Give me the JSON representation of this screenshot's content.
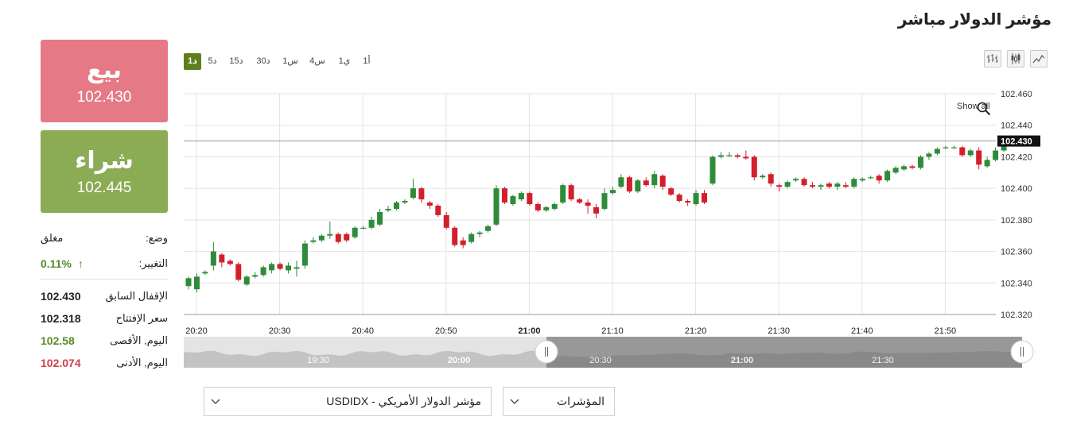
{
  "page": {
    "title": "مؤشر الدولار مباشر"
  },
  "sell": {
    "label": "بيع",
    "price": "102.430"
  },
  "buy": {
    "label": "شراء",
    "price": "102.445"
  },
  "info": {
    "status_label": "وضع:",
    "status_value": "مغلق",
    "change_label": "التغيير:",
    "change_value": "0.11%",
    "prev_close_label": "الإقفال السابق",
    "prev_close_value": "102.430",
    "open_label": "سعر الإفتتاح",
    "open_value": "102.318",
    "high_label": "اليوم, الأقصى",
    "high_value": "102.58",
    "low_label": "اليوم, الأدنى",
    "low_value": "102.074"
  },
  "timeframes": [
    "1د",
    "5د",
    "15د",
    "30د",
    "1س",
    "4س",
    "1ي",
    "1أ"
  ],
  "active_timeframe": "1د",
  "toolbar_icons": [
    "line-chart-icon",
    "candlestick-chart-icon",
    "bar-chart-icon"
  ],
  "chart_controls": {
    "show_all_label": "Show all"
  },
  "dropdowns": {
    "instrument": "USDIDX - مؤشر الدولار الأمريكي",
    "category": "المؤشرات"
  },
  "colors": {
    "up": "#2e8b3a",
    "down": "#d21f2c",
    "sell_bg": "#e57a86",
    "buy_bg": "#8bab55",
    "accent": "#5f7f1e"
  },
  "chart_data": {
    "type": "candlestick",
    "ylim": [
      102.32,
      102.46
    ],
    "yticks": [
      "102.460",
      "102.440",
      "102.420",
      "102.400",
      "102.380",
      "102.360",
      "102.340",
      "102.320"
    ],
    "x_tick_labels": [
      "20:20",
      "20:30",
      "20:40",
      "20:50",
      "21:00",
      "21:10",
      "21:20",
      "21:30",
      "21:40",
      "21:50"
    ],
    "bold_x_tick": "21:00",
    "current_price": "102.430",
    "grid": true,
    "navigator_labels": [
      "19:30",
      "20:00",
      "20:30",
      "21:00",
      "21:30"
    ],
    "candles": [
      {
        "o": 102.338,
        "h": 102.344,
        "l": 102.336,
        "c": 102.343
      },
      {
        "o": 102.336,
        "h": 102.346,
        "l": 102.334,
        "c": 102.344
      },
      {
        "o": 102.346,
        "h": 102.348,
        "l": 102.345,
        "c": 102.347
      },
      {
        "o": 102.351,
        "h": 102.366,
        "l": 102.348,
        "c": 102.36
      },
      {
        "o": 102.358,
        "h": 102.359,
        "l": 102.35,
        "c": 102.353
      },
      {
        "o": 102.354,
        "h": 102.355,
        "l": 102.351,
        "c": 102.352
      },
      {
        "o": 102.352,
        "h": 102.353,
        "l": 102.341,
        "c": 102.342
      },
      {
        "o": 102.339,
        "h": 102.345,
        "l": 102.338,
        "c": 102.344
      },
      {
        "o": 102.344,
        "h": 102.347,
        "l": 102.343,
        "c": 102.345
      },
      {
        "o": 102.345,
        "h": 102.351,
        "l": 102.344,
        "c": 102.35
      },
      {
        "o": 102.348,
        "h": 102.353,
        "l": 102.346,
        "c": 102.352
      },
      {
        "o": 102.352,
        "h": 102.353,
        "l": 102.348,
        "c": 102.349
      },
      {
        "o": 102.348,
        "h": 102.353,
        "l": 102.346,
        "c": 102.351
      },
      {
        "o": 102.349,
        "h": 102.354,
        "l": 102.344,
        "c": 102.35
      },
      {
        "o": 102.351,
        "h": 102.367,
        "l": 102.349,
        "c": 102.365
      },
      {
        "o": 102.366,
        "h": 102.369,
        "l": 102.365,
        "c": 102.367
      },
      {
        "o": 102.367,
        "h": 102.371,
        "l": 102.366,
        "c": 102.37
      },
      {
        "o": 102.37,
        "h": 102.379,
        "l": 102.368,
        "c": 102.371
      },
      {
        "o": 102.371,
        "h": 102.372,
        "l": 102.365,
        "c": 102.366
      },
      {
        "o": 102.371,
        "h": 102.372,
        "l": 102.366,
        "c": 102.367
      },
      {
        "o": 102.369,
        "h": 102.376,
        "l": 102.368,
        "c": 102.375
      },
      {
        "o": 102.375,
        "h": 102.376,
        "l": 102.374,
        "c": 102.375
      },
      {
        "o": 102.375,
        "h": 102.382,
        "l": 102.374,
        "c": 102.38
      },
      {
        "o": 102.377,
        "h": 102.387,
        "l": 102.376,
        "c": 102.385
      },
      {
        "o": 102.386,
        "h": 102.389,
        "l": 102.385,
        "c": 102.387
      },
      {
        "o": 102.387,
        "h": 102.392,
        "l": 102.386,
        "c": 102.391
      },
      {
        "o": 102.391,
        "h": 102.393,
        "l": 102.39,
        "c": 102.392
      },
      {
        "o": 102.394,
        "h": 102.406,
        "l": 102.393,
        "c": 102.4
      },
      {
        "o": 102.4,
        "h": 102.401,
        "l": 102.391,
        "c": 102.393
      },
      {
        "o": 102.391,
        "h": 102.392,
        "l": 102.387,
        "c": 102.389
      },
      {
        "o": 102.389,
        "h": 102.39,
        "l": 102.382,
        "c": 102.383
      },
      {
        "o": 102.383,
        "h": 102.385,
        "l": 102.374,
        "c": 102.375
      },
      {
        "o": 102.375,
        "h": 102.376,
        "l": 102.363,
        "c": 102.364
      },
      {
        "o": 102.367,
        "h": 102.369,
        "l": 102.362,
        "c": 102.364
      },
      {
        "o": 102.366,
        "h": 102.372,
        "l": 102.365,
        "c": 102.371
      },
      {
        "o": 102.371,
        "h": 102.373,
        "l": 102.369,
        "c": 102.372
      },
      {
        "o": 102.373,
        "h": 102.377,
        "l": 102.372,
        "c": 102.376
      },
      {
        "o": 102.377,
        "h": 102.402,
        "l": 102.376,
        "c": 102.4
      },
      {
        "o": 102.4,
        "h": 102.401,
        "l": 102.39,
        "c": 102.391
      },
      {
        "o": 102.39,
        "h": 102.396,
        "l": 102.389,
        "c": 102.395
      },
      {
        "o": 102.393,
        "h": 102.398,
        "l": 102.392,
        "c": 102.397
      },
      {
        "o": 102.397,
        "h": 102.398,
        "l": 102.389,
        "c": 102.39
      },
      {
        "o": 102.39,
        "h": 102.391,
        "l": 102.385,
        "c": 102.386
      },
      {
        "o": 102.386,
        "h": 102.389,
        "l": 102.385,
        "c": 102.388
      },
      {
        "o": 102.387,
        "h": 102.391,
        "l": 102.386,
        "c": 102.39
      },
      {
        "o": 102.391,
        "h": 102.403,
        "l": 102.39,
        "c": 102.402
      },
      {
        "o": 102.402,
        "h": 102.403,
        "l": 102.392,
        "c": 102.393
      },
      {
        "o": 102.393,
        "h": 102.394,
        "l": 102.39,
        "c": 102.391
      },
      {
        "o": 102.391,
        "h": 102.393,
        "l": 102.384,
        "c": 102.389
      },
      {
        "o": 102.388,
        "h": 102.39,
        "l": 102.381,
        "c": 102.384
      },
      {
        "o": 102.387,
        "h": 102.4,
        "l": 102.386,
        "c": 102.397
      },
      {
        "o": 102.397,
        "h": 102.401,
        "l": 102.396,
        "c": 102.399
      },
      {
        "o": 102.401,
        "h": 102.409,
        "l": 102.4,
        "c": 102.407
      },
      {
        "o": 102.407,
        "h": 102.408,
        "l": 102.397,
        "c": 102.398
      },
      {
        "o": 102.398,
        "h": 102.406,
        "l": 102.397,
        "c": 102.405
      },
      {
        "o": 102.405,
        "h": 102.407,
        "l": 102.401,
        "c": 102.402
      },
      {
        "o": 102.402,
        "h": 102.411,
        "l": 102.4,
        "c": 102.409
      },
      {
        "o": 102.408,
        "h": 102.409,
        "l": 102.399,
        "c": 102.401
      },
      {
        "o": 102.4,
        "h": 102.401,
        "l": 102.395,
        "c": 102.396
      },
      {
        "o": 102.396,
        "h": 102.397,
        "l": 102.391,
        "c": 102.392
      },
      {
        "o": 102.392,
        "h": 102.393,
        "l": 102.389,
        "c": 102.391
      },
      {
        "o": 102.39,
        "h": 102.399,
        "l": 102.389,
        "c": 102.397
      },
      {
        "o": 102.397,
        "h": 102.399,
        "l": 102.39,
        "c": 102.391
      },
      {
        "o": 102.403,
        "h": 102.421,
        "l": 102.402,
        "c": 102.42
      },
      {
        "o": 102.42,
        "h": 102.423,
        "l": 102.419,
        "c": 102.421
      },
      {
        "o": 102.421,
        "h": 102.423,
        "l": 102.42,
        "c": 102.421
      },
      {
        "o": 102.421,
        "h": 102.422,
        "l": 102.419,
        "c": 102.42
      },
      {
        "o": 102.42,
        "h": 102.424,
        "l": 102.418,
        "c": 102.419
      },
      {
        "o": 102.42,
        "h": 102.421,
        "l": 102.405,
        "c": 102.407
      },
      {
        "o": 102.407,
        "h": 102.409,
        "l": 102.406,
        "c": 102.408
      },
      {
        "o": 102.409,
        "h": 102.41,
        "l": 102.401,
        "c": 102.403
      },
      {
        "o": 102.402,
        "h": 102.403,
        "l": 102.398,
        "c": 102.401
      },
      {
        "o": 102.401,
        "h": 102.405,
        "l": 102.4,
        "c": 102.404
      },
      {
        "o": 102.405,
        "h": 102.407,
        "l": 102.404,
        "c": 102.406
      },
      {
        "o": 102.406,
        "h": 102.407,
        "l": 102.401,
        "c": 102.402
      },
      {
        "o": 102.402,
        "h": 102.404,
        "l": 102.4,
        "c": 102.401
      },
      {
        "o": 102.401,
        "h": 102.403,
        "l": 102.399,
        "c": 102.402
      },
      {
        "o": 102.403,
        "h": 102.404,
        "l": 102.4,
        "c": 102.401
      },
      {
        "o": 102.401,
        "h": 102.404,
        "l": 102.399,
        "c": 102.403
      },
      {
        "o": 102.402,
        "h": 102.404,
        "l": 102.4,
        "c": 102.401
      },
      {
        "o": 102.401,
        "h": 102.407,
        "l": 102.4,
        "c": 102.406
      },
      {
        "o": 102.405,
        "h": 102.407,
        "l": 102.404,
        "c": 102.406
      },
      {
        "o": 102.407,
        "h": 102.408,
        "l": 102.406,
        "c": 102.407
      },
      {
        "o": 102.408,
        "h": 102.409,
        "l": 102.403,
        "c": 102.405
      },
      {
        "o": 102.405,
        "h": 102.412,
        "l": 102.404,
        "c": 102.411
      },
      {
        "o": 102.41,
        "h": 102.414,
        "l": 102.409,
        "c": 102.413
      },
      {
        "o": 102.412,
        "h": 102.415,
        "l": 102.411,
        "c": 102.414
      },
      {
        "o": 102.414,
        "h": 102.415,
        "l": 102.412,
        "c": 102.413
      },
      {
        "o": 102.413,
        "h": 102.421,
        "l": 102.412,
        "c": 102.42
      },
      {
        "o": 102.42,
        "h": 102.423,
        "l": 102.418,
        "c": 102.422
      },
      {
        "o": 102.422,
        "h": 102.426,
        "l": 102.421,
        "c": 102.425
      },
      {
        "o": 102.426,
        "h": 102.427,
        "l": 102.425,
        "c": 102.426
      },
      {
        "o": 102.426,
        "h": 102.427,
        "l": 102.425,
        "c": 102.426
      },
      {
        "o": 102.426,
        "h": 102.427,
        "l": 102.42,
        "c": 102.421
      },
      {
        "o": 102.421,
        "h": 102.425,
        "l": 102.42,
        "c": 102.424
      },
      {
        "o": 102.424,
        "h": 102.426,
        "l": 102.412,
        "c": 102.415
      },
      {
        "o": 102.414,
        "h": 102.42,
        "l": 102.413,
        "c": 102.418
      },
      {
        "o": 102.418,
        "h": 102.426,
        "l": 102.417,
        "c": 102.424
      },
      {
        "o": 102.424,
        "h": 102.431,
        "l": 102.423,
        "c": 102.428
      }
    ]
  }
}
